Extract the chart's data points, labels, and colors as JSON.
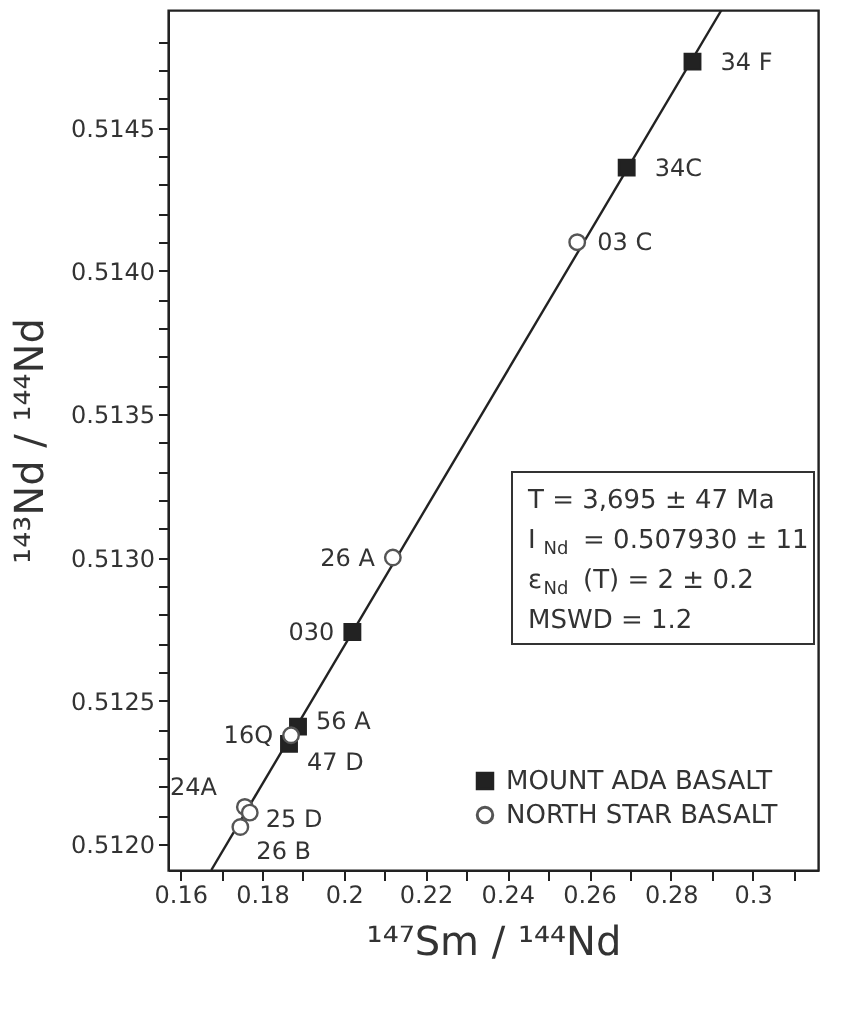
{
  "chart_data": {
    "type": "scatter",
    "xlabel": "¹⁴⁷Sm / ¹⁴⁴Nd",
    "ylabel": "¹⁴³Nd / ¹⁴⁴Nd",
    "xlim": [
      0.157,
      0.316
    ],
    "ylim": [
      0.51191,
      0.51491
    ],
    "xticks": [
      0.16,
      {
        "value": 0.17,
        "label": null
      },
      0.18,
      {
        "value": 0.19,
        "label": null
      },
      0.2,
      {
        "value": 0.21,
        "label": null
      },
      0.22,
      {
        "value": 0.23,
        "label": null
      },
      0.24,
      {
        "value": 0.25,
        "label": null
      },
      0.26,
      {
        "value": 0.27,
        "label": null
      },
      0.28,
      {
        "value": 0.29,
        "label": null
      },
      0.3,
      {
        "value": 0.31,
        "label": null
      }
    ],
    "yticks": [
      {
        "value": 0.512,
        "label": "0.5120"
      },
      {
        "value": 0.5121,
        "label": null
      },
      {
        "value": 0.5122,
        "label": null
      },
      {
        "value": 0.5123,
        "label": null
      },
      {
        "value": 0.5124,
        "label": null
      },
      {
        "value": 0.5125,
        "label": "0.5125"
      },
      {
        "value": 0.5126,
        "label": null
      },
      {
        "value": 0.5127,
        "label": null
      },
      {
        "value": 0.5128,
        "label": null
      },
      {
        "value": 0.5129,
        "label": null
      },
      {
        "value": 0.513,
        "label": "0.5130"
      },
      {
        "value": 0.5131,
        "label": null
      },
      {
        "value": 0.5132,
        "label": null
      },
      {
        "value": 0.5133,
        "label": null
      },
      {
        "value": 0.5134,
        "label": null
      },
      {
        "value": 0.5135,
        "label": "0.5135"
      },
      {
        "value": 0.5136,
        "label": null
      },
      {
        "value": 0.5137,
        "label": null
      },
      {
        "value": 0.5138,
        "label": null
      },
      {
        "value": 0.5139,
        "label": null
      },
      {
        "value": 0.514,
        "label": "0.5140"
      },
      {
        "value": 0.5141,
        "label": null
      },
      {
        "value": 0.5142,
        "label": null
      },
      {
        "value": 0.5143,
        "label": null
      },
      {
        "value": 0.5144,
        "label": null
      },
      {
        "value": 0.5145,
        "label": "0.5145"
      },
      {
        "value": 0.5146,
        "label": null
      },
      {
        "value": 0.5147,
        "label": null
      },
      {
        "value": 0.5148,
        "label": null
      }
    ],
    "grid": false,
    "legend": "bottom right",
    "series": [
      {
        "name": "MOUNT ADA BASALT",
        "marker": "square",
        "color": "#222222",
        "x": [
          0.2853,
          0.2692,
          0.2021,
          0.1888,
          0.1866
        ],
        "values": [
          0.51473,
          0.51436,
          0.51274,
          0.51241,
          0.51235
        ]
      },
      {
        "name": "NORTH STAR BASALT",
        "marker": "circle",
        "color": "#555555",
        "x": [
          0.2571,
          0.212,
          0.1871,
          0.1758,
          0.177,
          0.1747
        ],
        "values": [
          0.5141,
          0.513,
          0.51238,
          0.51213,
          0.51211,
          0.51206
        ]
      },
      {
        "type": "line",
        "line_style": "solid",
        "color": "#222222",
        "x": [
          0.1676,
          0.2924
        ],
        "values": [
          0.51191,
          0.51491
        ]
      }
    ],
    "annotations": [
      {
        "text": "34 F",
        "x": 0.2853,
        "y": 0.51473
      },
      {
        "text": "34C",
        "x": 0.2692,
        "y": 0.51436
      },
      {
        "text": "03 C",
        "x": 0.2571,
        "y": 0.5141
      },
      {
        "text": "26 A",
        "x": 0.212,
        "y": 0.513
      },
      {
        "text": "030",
        "x": 0.2021,
        "y": 0.51274
      },
      {
        "text": "56 A",
        "x": 0.1888,
        "y": 0.51241
      },
      {
        "text": "16Q",
        "x": 0.1871,
        "y": 0.51238
      },
      {
        "text": "47 D",
        "x": 0.1866,
        "y": 0.51235
      },
      {
        "text": "24A",
        "x": 0.1758,
        "y": 0.51213
      },
      {
        "text": "25 D",
        "x": 0.177,
        "y": 0.51211
      },
      {
        "text": "26 B",
        "x": 0.1747,
        "y": 0.51206
      },
      "T = 3,695 ± 47 Ma",
      "I$_{Nd}$ = 0.507930 ± 11",
      "ε$_{Nd}$ (T) = 2 ± 0.2",
      "MSWD = 1.2"
    ]
  }
}
